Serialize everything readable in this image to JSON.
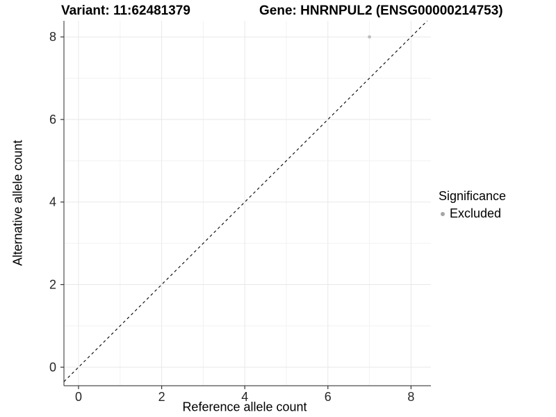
{
  "chart_data": {
    "type": "scatter",
    "titles": {
      "variant": "Variant: 11:62481379",
      "gene": "Gene: HNRNPUL2 (ENSG00000214753)"
    },
    "xlabel": "Reference allele count",
    "ylabel": "Alternative allele count",
    "xticks": [
      0,
      2,
      4,
      6,
      8
    ],
    "yticks": [
      0,
      2,
      4,
      6,
      8
    ],
    "minor_xticks": [
      1,
      3,
      5,
      7
    ],
    "minor_yticks": [
      1,
      3,
      5,
      7
    ],
    "xlim": [
      -0.35,
      8.48
    ],
    "ylim": [
      -0.45,
      8.39
    ],
    "grid": true,
    "series": [
      {
        "name": "Excluded",
        "color": "#bdbdbd",
        "points": [
          {
            "x": 7,
            "y": 8
          }
        ]
      }
    ],
    "reference_line": {
      "kind": "identity",
      "style": "dashed",
      "color": "#000000"
    },
    "legend": {
      "title": "Significance",
      "position": "right",
      "entries": [
        {
          "label": "Excluded",
          "color": "#a6a6a6"
        }
      ]
    },
    "colors": {
      "grid_major": "#e8e8e8",
      "grid_minor": "#f2f2f2",
      "axis_line": "#4d4d4d",
      "tick": "#333333",
      "tick_label": "#262626"
    }
  }
}
